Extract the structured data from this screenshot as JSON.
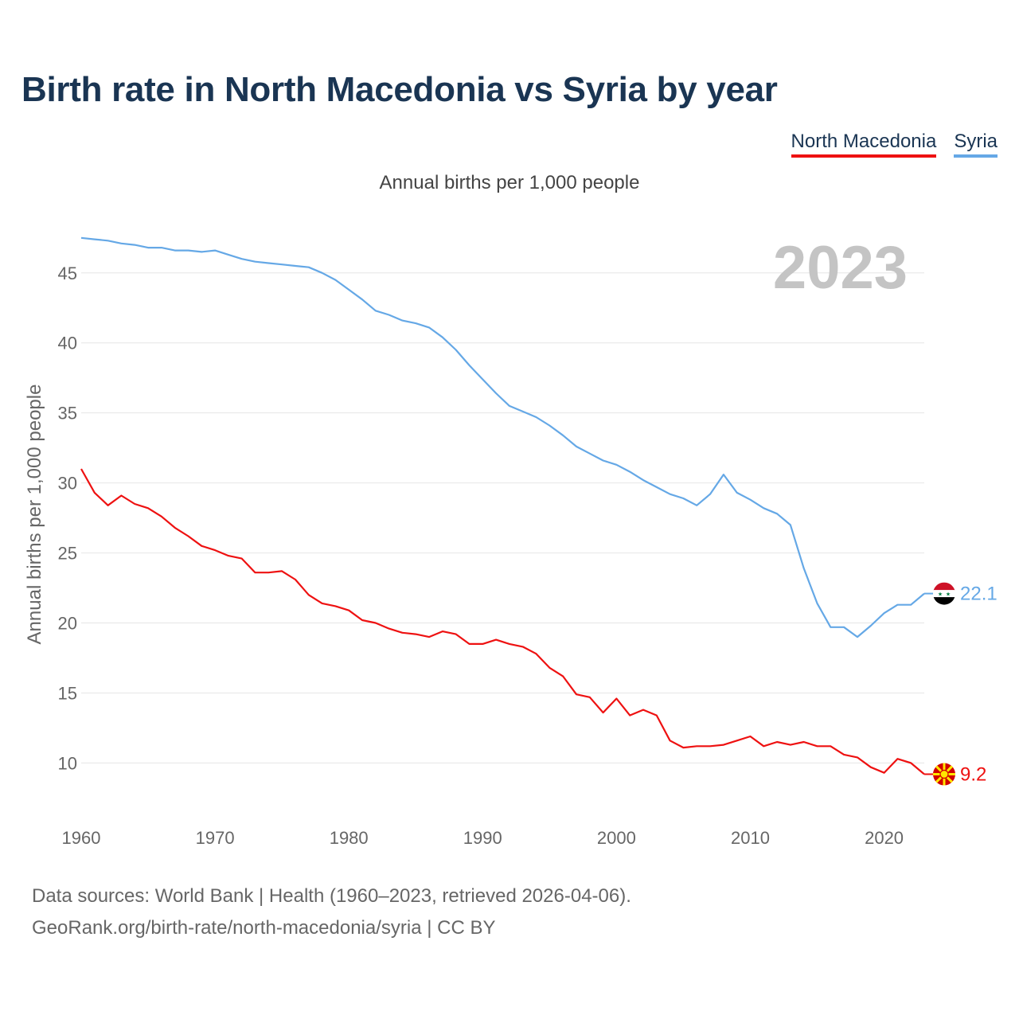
{
  "page": {
    "title": "Birth rate in North Macedonia vs Syria by year",
    "subtitle": "Annual births per 1,000 people",
    "footer_line1": "Data sources: World Bank | Health (1960–2023, retrieved 2026-04-06).",
    "footer_line2": "GeoRank.org/birth-rate/north-macedonia/syria | CC BY"
  },
  "legend": [
    {
      "name": "North Macedonia",
      "color": "#ee1111"
    },
    {
      "name": "Syria",
      "color": "#65a8e6"
    }
  ],
  "icons": {
    "north_macedonia": "north-macedonia-flag-icon",
    "syria": "syria-flag-icon"
  },
  "chart_data": {
    "type": "line",
    "title": "Birth rate in North Macedonia vs Syria by year",
    "subtitle": "Annual births per 1,000 people",
    "xlabel": "",
    "ylabel": "Annual births per 1,000 people",
    "xlim": [
      1960,
      2023
    ],
    "ylim": [
      6.5,
      48
    ],
    "xticks": [
      1960,
      1970,
      1980,
      1990,
      2000,
      2010,
      2020
    ],
    "yticks": [
      10,
      15,
      20,
      25,
      30,
      35,
      40,
      45
    ],
    "grid": true,
    "year_watermark": "2023",
    "x": [
      1960,
      1961,
      1962,
      1963,
      1964,
      1965,
      1966,
      1967,
      1968,
      1969,
      1970,
      1971,
      1972,
      1973,
      1974,
      1975,
      1976,
      1977,
      1978,
      1979,
      1980,
      1981,
      1982,
      1983,
      1984,
      1985,
      1986,
      1987,
      1988,
      1989,
      1990,
      1991,
      1992,
      1993,
      1994,
      1995,
      1996,
      1997,
      1998,
      1999,
      2000,
      2001,
      2002,
      2003,
      2004,
      2005,
      2006,
      2007,
      2008,
      2009,
      2010,
      2011,
      2012,
      2013,
      2014,
      2015,
      2016,
      2017,
      2018,
      2019,
      2020,
      2021,
      2022,
      2023
    ],
    "series": [
      {
        "name": "North Macedonia",
        "color": "#ee1111",
        "end_label": "9.2",
        "values": [
          31.0,
          29.3,
          28.4,
          29.1,
          28.5,
          28.2,
          27.6,
          26.8,
          26.2,
          25.5,
          25.2,
          24.8,
          24.6,
          23.6,
          23.6,
          23.7,
          23.1,
          22.0,
          21.4,
          21.2,
          20.9,
          20.2,
          20.0,
          19.6,
          19.3,
          19.2,
          19.0,
          19.4,
          19.2,
          18.5,
          18.5,
          18.8,
          18.5,
          18.3,
          17.8,
          16.8,
          16.2,
          14.9,
          14.7,
          13.6,
          14.6,
          13.4,
          13.8,
          13.4,
          11.6,
          11.1,
          11.2,
          11.2,
          11.3,
          11.6,
          11.9,
          11.2,
          11.5,
          11.3,
          11.5,
          11.2,
          11.2,
          10.6,
          10.4,
          9.7,
          9.3,
          10.3,
          10.0,
          9.2
        ]
      },
      {
        "name": "Syria",
        "color": "#65a8e6",
        "end_label": "22.1",
        "values": [
          47.5,
          47.4,
          47.3,
          47.1,
          47.0,
          46.8,
          46.8,
          46.6,
          46.6,
          46.5,
          46.6,
          46.3,
          46.0,
          45.8,
          45.7,
          45.6,
          45.5,
          45.4,
          45.0,
          44.5,
          43.8,
          43.1,
          42.3,
          42.0,
          41.6,
          41.4,
          41.1,
          40.4,
          39.5,
          38.4,
          37.4,
          36.4,
          35.5,
          35.1,
          34.7,
          34.1,
          33.4,
          32.6,
          32.1,
          31.6,
          31.3,
          30.8,
          30.2,
          29.7,
          29.2,
          28.9,
          28.4,
          29.2,
          30.6,
          29.3,
          28.8,
          28.2,
          27.8,
          27.0,
          23.9,
          21.4,
          19.7,
          19.7,
          19.0,
          19.8,
          20.7,
          21.3,
          21.3,
          22.1
        ]
      }
    ]
  }
}
